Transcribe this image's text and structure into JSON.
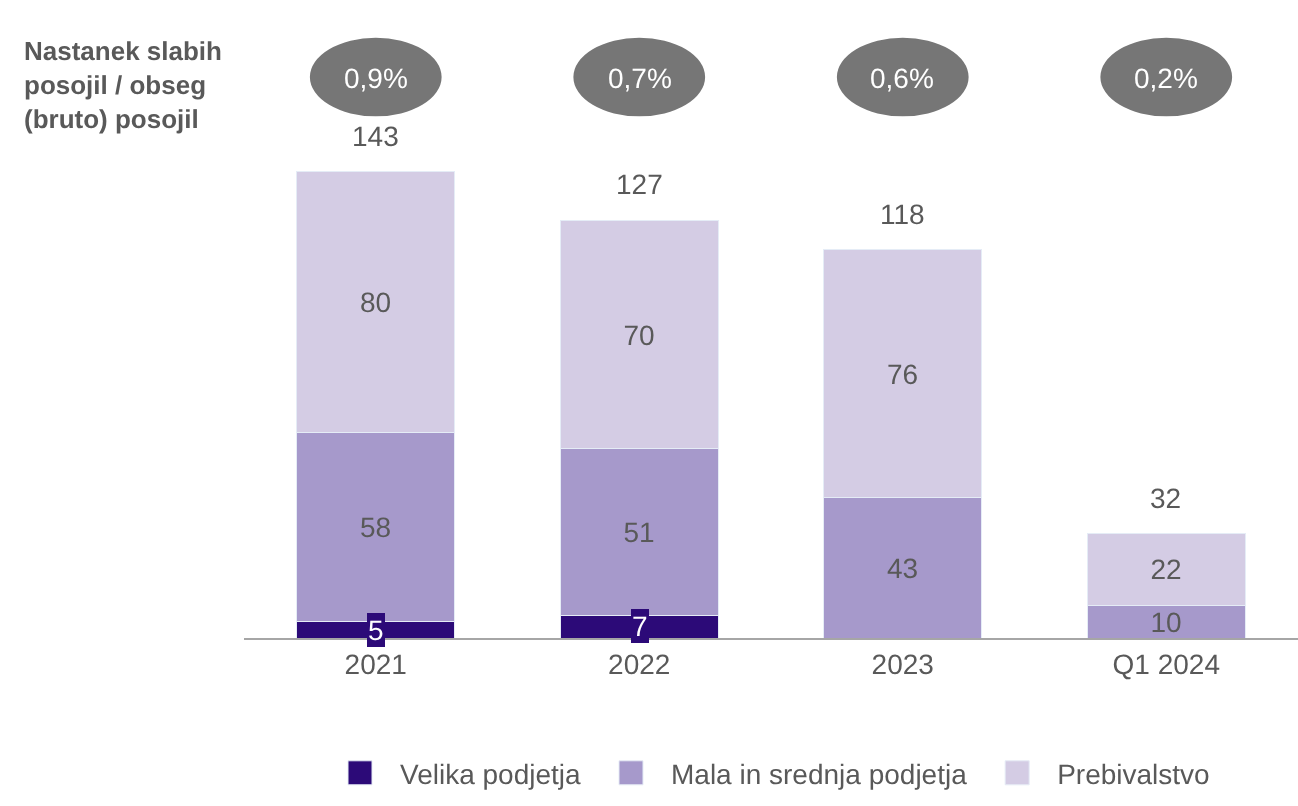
{
  "chart_data": {
    "type": "bar",
    "stacked": true,
    "data_labels": true,
    "legend": "bottom",
    "categories": [
      "2021",
      "2022",
      "2023",
      "Q1 2024"
    ],
    "series": [
      {
        "name": "Velika podjetja",
        "color": "#2c0a78",
        "values": [
          5,
          7,
          null,
          null
        ]
      },
      {
        "name": "Mala in srednja podjetja",
        "color": "#a699cb",
        "values": [
          58,
          51,
          43,
          10
        ]
      },
      {
        "name": "Prebivalstvo",
        "color": "#d4cce4",
        "values": [
          80,
          70,
          76,
          22
        ]
      }
    ],
    "totals": [
      "143",
      "127",
      "118",
      "32"
    ],
    "annotations": [
      "Nastanek slabih posojil / obseg (bruto) posojil",
      "0,9%",
      "0,7%",
      "0,6%",
      "0,2%"
    ]
  }
}
